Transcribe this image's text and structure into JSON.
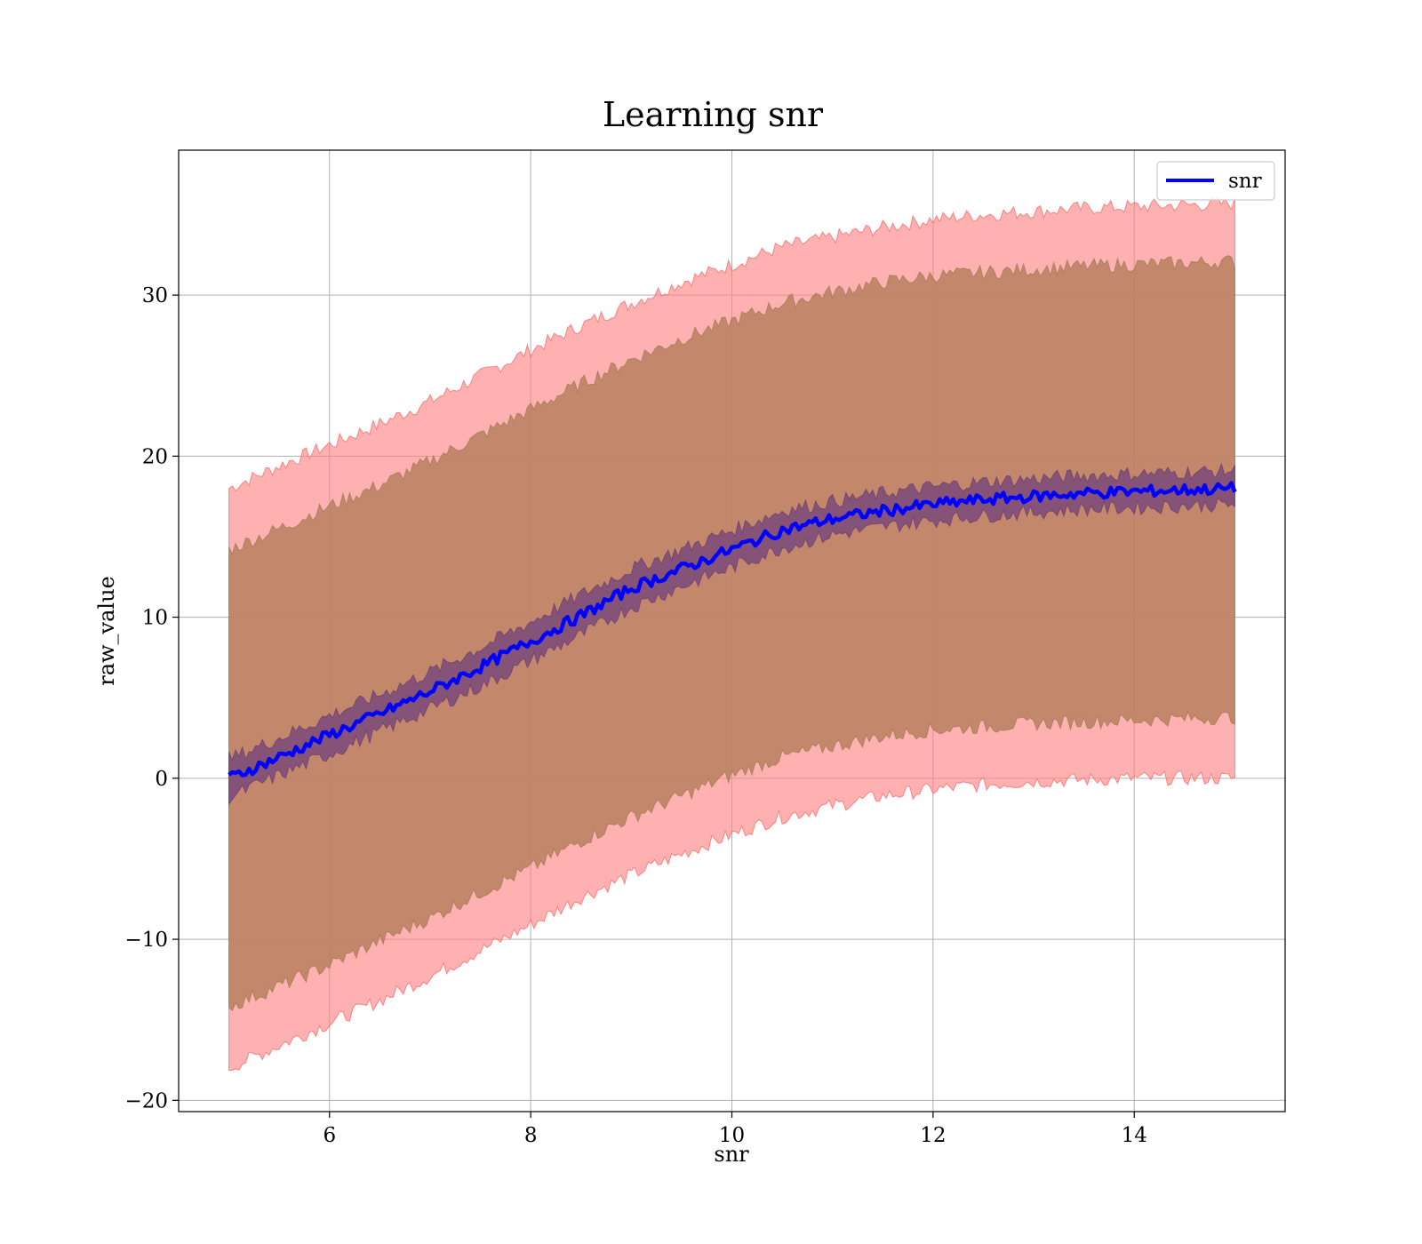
{
  "chart_data": {
    "type": "line",
    "title": "Learning snr",
    "xlabel": "snr",
    "ylabel": "raw_value",
    "xlim": [
      4.5,
      15.5
    ],
    "ylim": [
      -20.7,
      39
    ],
    "xticks": [
      6,
      8,
      10,
      12,
      14
    ],
    "yticks": [
      -20,
      -10,
      0,
      10,
      20,
      30
    ],
    "ytick_labels": [
      "−20",
      "−10",
      "0",
      "10",
      "20",
      "30"
    ],
    "grid": true,
    "legend_position": "top-right",
    "legend": [
      "snr"
    ],
    "colors": {
      "line": "#0000ff",
      "inner_band": "#7a4a7a",
      "outer_band": "#ff8080",
      "middle_band": "#b88060"
    },
    "x": [
      5,
      5.5,
      6,
      6.5,
      7,
      7.5,
      8,
      8.5,
      9,
      9.5,
      10,
      10.5,
      11,
      11.5,
      12,
      12.5,
      13,
      13.5,
      14,
      14.5,
      15
    ],
    "series": [
      {
        "name": "snr",
        "values": [
          0,
          1.3,
          2.7,
          4.0,
          5.4,
          6.9,
          8.5,
          10.1,
          11.8,
          13.0,
          14.2,
          15.4,
          16.1,
          16.6,
          17.0,
          17.3,
          17.5,
          17.7,
          17.8,
          17.9,
          18.0
        ]
      }
    ],
    "bands": [
      {
        "lower": [
          -18,
          -16.6,
          -15.2,
          -13.8,
          -12.3,
          -10.7,
          -9.1,
          -7.4,
          -6.0,
          -4.7,
          -3.5,
          -2.4,
          -1.7,
          -1.1,
          -0.7,
          -0.4,
          -0.2,
          -0.1,
          0,
          0,
          0
        ],
        "upper": [
          18,
          19.4,
          20.7,
          22.0,
          23.4,
          25.0,
          26.6,
          28.1,
          29.5,
          30.8,
          31.9,
          33.0,
          33.6,
          34.2,
          34.7,
          35.0,
          35.2,
          35.4,
          35.5,
          35.6,
          35.7
        ]
      },
      {
        "lower": [
          -14.2,
          -12.9,
          -11.6,
          -10.1,
          -8.7,
          -7.1,
          -5.6,
          -3.9,
          -2.4,
          -1.1,
          0.2,
          1.3,
          2.0,
          2.6,
          3.0,
          3.2,
          3.4,
          3.5,
          3.6,
          3.7,
          3.8
        ],
        "upper": [
          14.2,
          15.5,
          16.9,
          18.2,
          19.7,
          21.3,
          22.9,
          24.5,
          26.0,
          27.3,
          28.4,
          29.5,
          30.2,
          30.8,
          31.2,
          31.4,
          31.6,
          31.8,
          31.9,
          32.0,
          32.1
        ]
      },
      {
        "lower": [
          -1.2,
          0.2,
          1.5,
          2.9,
          4.3,
          5.7,
          7.3,
          8.9,
          10.6,
          11.9,
          13.1,
          14.3,
          15.1,
          15.6,
          16.0,
          16.3,
          16.5,
          16.7,
          16.8,
          16.9,
          17.0
        ],
        "upper": [
          1.2,
          2.5,
          3.9,
          5.2,
          6.6,
          8.1,
          9.7,
          11.4,
          13.0,
          14.2,
          15.4,
          16.6,
          17.2,
          17.7,
          18.1,
          18.4,
          18.6,
          18.8,
          18.9,
          19.0,
          19.1
        ]
      }
    ]
  }
}
